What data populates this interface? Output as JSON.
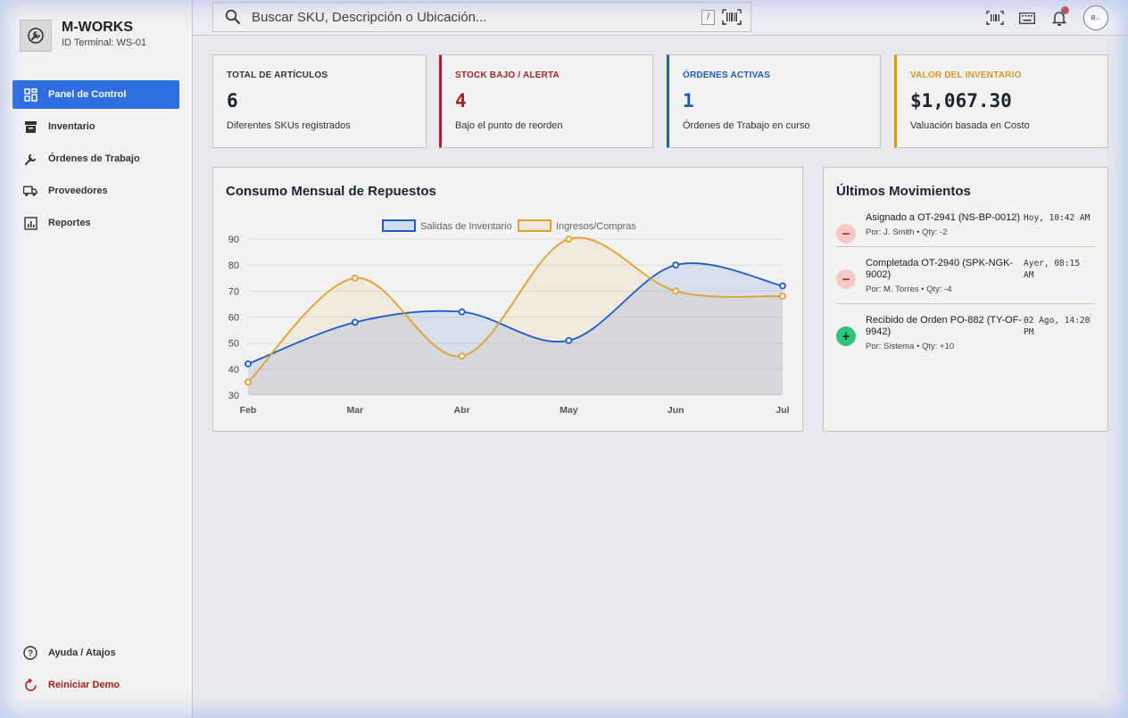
{
  "brand": {
    "title": "M-WORKS",
    "subtitle": "ID Terminal: WS-01"
  },
  "nav": [
    {
      "label": "Panel de Control",
      "icon": "dashboard-icon",
      "active": true
    },
    {
      "label": "Inventario",
      "icon": "archive-icon"
    },
    {
      "label": "Órdenes de Trabajo",
      "icon": "wrench-icon"
    },
    {
      "label": "Proveedores",
      "icon": "truck-icon"
    },
    {
      "label": "Reportes",
      "icon": "report-icon"
    }
  ],
  "nav_bottom": [
    {
      "label": "Ayuda / Atajos",
      "icon": "help-icon"
    },
    {
      "label": "Reiniciar Demo",
      "icon": "reset-icon"
    }
  ],
  "search": {
    "placeholder": "Buscar SKU, Descripción o Ubicación...",
    "shortcut": "/"
  },
  "avatar_text": "B...",
  "stats": [
    {
      "label": "TOTAL DE ARTÍCULOS",
      "value": "6",
      "desc": "Diferentes SKUs registrados",
      "color": "#333333"
    },
    {
      "label": "STOCK BAJO / ALERTA",
      "value": "4",
      "desc": "Bajo el punto de reorden",
      "color": "#a3262a"
    },
    {
      "label": "ÓRDENES ACTIVAS",
      "value": "1",
      "desc": "Órdenes de Trabajo en curso",
      "color": "#1f5bb5"
    },
    {
      "label": "VALOR DEL INVENTARIO",
      "value": "$1,067.30",
      "desc": "Valuación basada en Costo",
      "color": "#d9962c"
    }
  ],
  "chart_panel": {
    "title": "Consumo Mensual de Repuestos"
  },
  "chart_data": {
    "type": "area",
    "categories": [
      "Feb",
      "Mar",
      "Abr",
      "May",
      "Jun",
      "Jul"
    ],
    "series": [
      {
        "name": "Salidas de Inventario",
        "values": [
          42,
          58,
          62,
          51,
          80,
          72
        ],
        "color": "#1f5bc4"
      },
      {
        "name": "Ingresos/Compras",
        "values": [
          35,
          75,
          45,
          90,
          70,
          68
        ],
        "color": "#e0a030"
      }
    ],
    "ylim": [
      30,
      90
    ],
    "yticks": [
      "90",
      "80",
      "70",
      "60",
      "50",
      "40",
      "30"
    ],
    "legend": "top",
    "grid": true
  },
  "moves_panel": {
    "title": "Últimos Movimientos"
  },
  "moves": [
    {
      "type": "out",
      "symbol": "−",
      "title": "Asignado a OT-2941 (NS-BP-0012)",
      "meta": "Por: J. Smith • Qty: -2",
      "time": "Hoy, 10:42 AM"
    },
    {
      "type": "out",
      "symbol": "−",
      "title": "Completada OT-2940 (SPK-NGK-9002)",
      "meta": "Por: M. Torres • Qty: -4",
      "time": "Ayer, 08:15 AM"
    },
    {
      "type": "in",
      "symbol": "+",
      "title": "Recibido de Orden PO-882 (TY-OF-9942)",
      "meta": "Por: Sistema • Qty: +10",
      "time": "02 Ago, 14:20 PM"
    }
  ]
}
